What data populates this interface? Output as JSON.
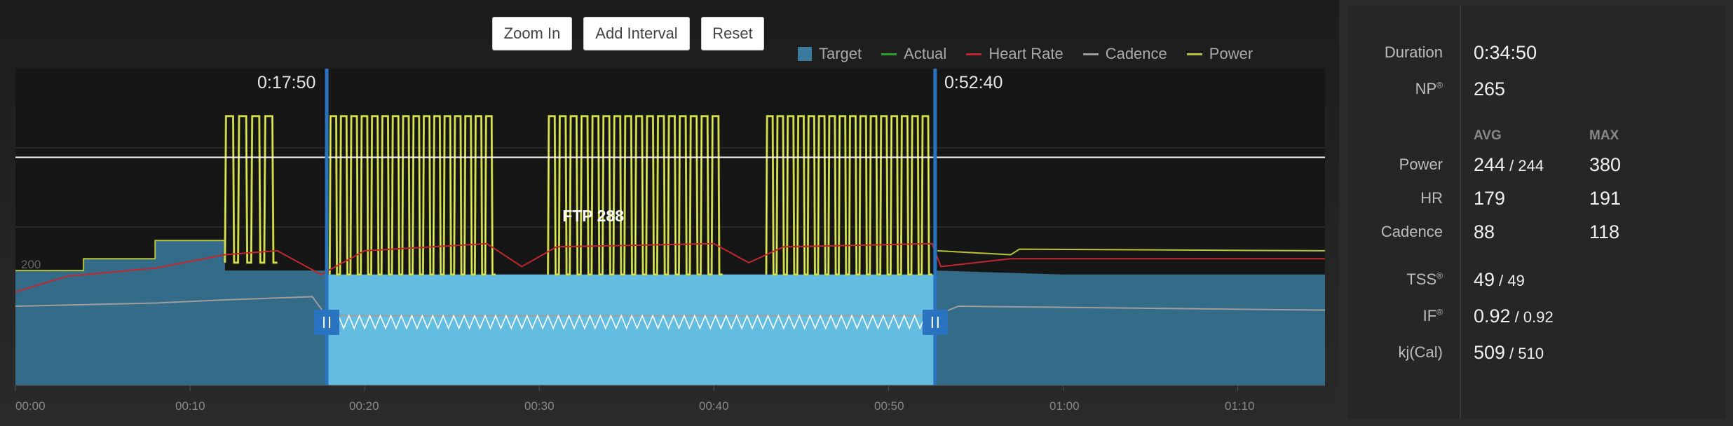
{
  "toolbar": {
    "zoom_in_label": "Zoom In",
    "add_interval_label": "Add Interval",
    "reset_label": "Reset"
  },
  "legend": {
    "target": "Target",
    "actual": "Actual",
    "heart_rate": "Heart Rate",
    "cadence": "Cadence",
    "power": "Power"
  },
  "colors": {
    "target": "#3a7a9c",
    "target_selected": "#62bde0",
    "actual": "#2ca02c",
    "heart_rate": "#c0282d",
    "cadence": "#9e9e9e",
    "power": "#b5c33a",
    "interval_marker": "#2a73c0"
  },
  "interval": {
    "start_label": "0:17:50",
    "end_label": "0:52:40"
  },
  "ftp_label": "FTP 288",
  "chart_data": {
    "type": "line",
    "x_unit": "minutes",
    "xlim": [
      0,
      75
    ],
    "x_ticks": [
      "00:00",
      "00:10",
      "00:20",
      "00:30",
      "00:40",
      "00:50",
      "01:00",
      "01:10"
    ],
    "y_tick_labels": [
      "200"
    ],
    "ftp": 288,
    "selected_interval": [
      17.83,
      52.67
    ],
    "series": [
      {
        "name": "Target",
        "points": [
          [
            0,
            145
          ],
          [
            3.9,
            145
          ],
          [
            3.9,
            160
          ],
          [
            8,
            160
          ],
          [
            8,
            183
          ],
          [
            12,
            183
          ],
          [
            12,
            145
          ],
          [
            17.8,
            145
          ],
          [
            17.8,
            140
          ],
          [
            52.7,
            140
          ],
          [
            52.7,
            145
          ],
          [
            60,
            140
          ],
          [
            75,
            140
          ]
        ]
      },
      {
        "name": "Power",
        "efforts": [
          {
            "start": 12,
            "end": 15,
            "high": 340,
            "low": 155,
            "count": 4
          },
          {
            "start": 18,
            "end": 27.5,
            "high": 340,
            "low": 140,
            "count": 16
          },
          {
            "start": 30.5,
            "end": 40.5,
            "high": 340,
            "low": 140,
            "count": 16
          },
          {
            "start": 43,
            "end": 52.5,
            "high": 340,
            "low": 140,
            "count": 16
          }
        ]
      },
      {
        "name": "Heart Rate",
        "points": [
          [
            0,
            118
          ],
          [
            3,
            138
          ],
          [
            8,
            148
          ],
          [
            12,
            165
          ],
          [
            15,
            170
          ],
          [
            17.5,
            140
          ],
          [
            20,
            170
          ],
          [
            27,
            179
          ],
          [
            29,
            150
          ],
          [
            31,
            175
          ],
          [
            40,
            179
          ],
          [
            42,
            155
          ],
          [
            44,
            175
          ],
          [
            52.5,
            179
          ],
          [
            53,
            150
          ],
          [
            57,
            160
          ],
          [
            75,
            160
          ]
        ]
      },
      {
        "name": "Cadence",
        "points": [
          [
            0,
            100
          ],
          [
            8,
            104
          ],
          [
            12,
            108
          ],
          [
            17,
            112
          ],
          [
            17.8,
            88
          ],
          [
            52.7,
            88
          ],
          [
            54,
            100
          ],
          [
            75,
            95
          ]
        ]
      }
    ]
  },
  "stats": {
    "duration_label": "Duration",
    "duration_value": "0:34:50",
    "np_label": "NP",
    "np_reg": "®",
    "np_value": "265",
    "avg_header": "AVG",
    "max_header": "MAX",
    "power_label": "Power",
    "power_avg": "244",
    "power_sep": " / ",
    "power_avg2": "244",
    "power_max": "380",
    "hr_label": "HR",
    "hr_avg": "179",
    "hr_max": "191",
    "cadence_label": "Cadence",
    "cadence_avg": "88",
    "cadence_max": "118",
    "tss_label": "TSS",
    "tss_reg": "®",
    "tss_value": "49",
    "tss_sep": " / ",
    "tss_value2": "49",
    "if_label": "IF",
    "if_reg": "®",
    "if_value": "0.92",
    "if_sep": " / ",
    "if_value2": "0.92",
    "kj_label": "kj(Cal)",
    "kj_value": "509",
    "kj_sep": " / ",
    "kj_value2": "510"
  }
}
